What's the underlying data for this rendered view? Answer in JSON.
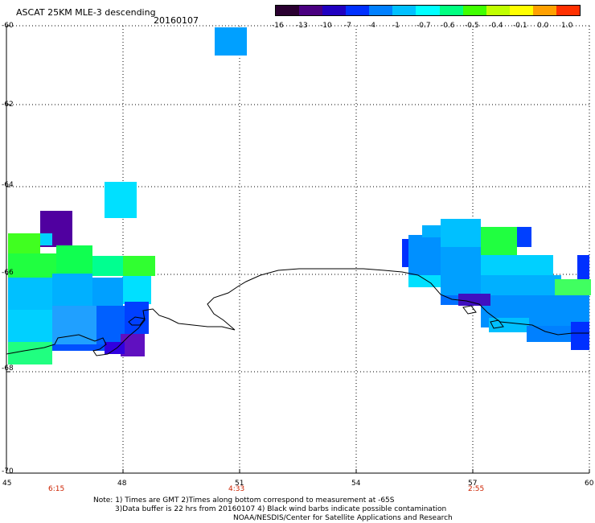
{
  "header": {
    "title": "ASCAT 25KM MLE-3 descending",
    "date": "20160107"
  },
  "colorbar": {
    "labels": [
      "-16",
      "-13",
      "-10",
      "-7",
      "-4",
      "-1",
      "-0.7",
      "-0.6",
      "-0.5",
      "-0.4",
      "-0.1",
      "0.0",
      "1.0"
    ],
    "colors": [
      "#2a0030",
      "#4a0080",
      "#2000c0",
      "#0030ff",
      "#0080ff",
      "#00c0ff",
      "#00ffff",
      "#00ff80",
      "#40ff00",
      "#c0ff00",
      "#ffff00",
      "#ffa000",
      "#ff3000"
    ]
  },
  "axes": {
    "lat_labels": [
      "-60",
      "-62",
      "-64",
      "-66",
      "-68",
      "-70"
    ],
    "lon_labels": [
      "45",
      "48",
      "51",
      "54",
      "57",
      "60"
    ],
    "time_labels": [
      "6:15",
      "4:33",
      "2:55"
    ]
  },
  "notes": {
    "line1": "Note: 1) Times are GMT 2)Times along bottom correspond to measurement at -65S",
    "line2": "3)Data buffer is 22 hrs from 20160107 4) Black wind barbs indicate possible contamination",
    "line3": "NOAA/NESDIS/Center for Satellite Applications and Research"
  }
}
